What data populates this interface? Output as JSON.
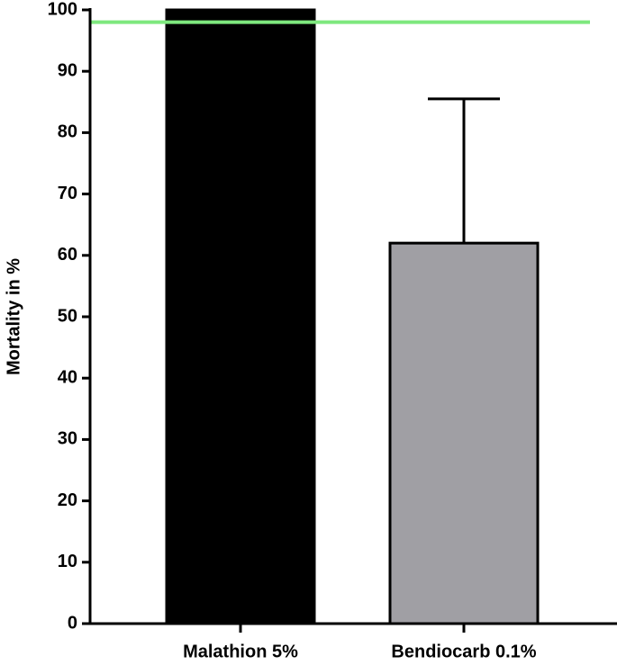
{
  "chart_data": {
    "type": "bar",
    "y_label": "Mortality in %",
    "categories": [
      "Malathion 5%",
      "Bendiocarb 0.1%"
    ],
    "values": [
      100,
      62
    ],
    "errors": [
      null,
      23.5
    ],
    "colors": [
      "#000000",
      "#a09fa4"
    ],
    "ylim": [
      0,
      100
    ],
    "yticks": [
      0,
      10,
      20,
      30,
      40,
      50,
      60,
      70,
      80,
      90,
      100
    ],
    "threshold": 98,
    "threshold_color": "#7ee87e"
  }
}
